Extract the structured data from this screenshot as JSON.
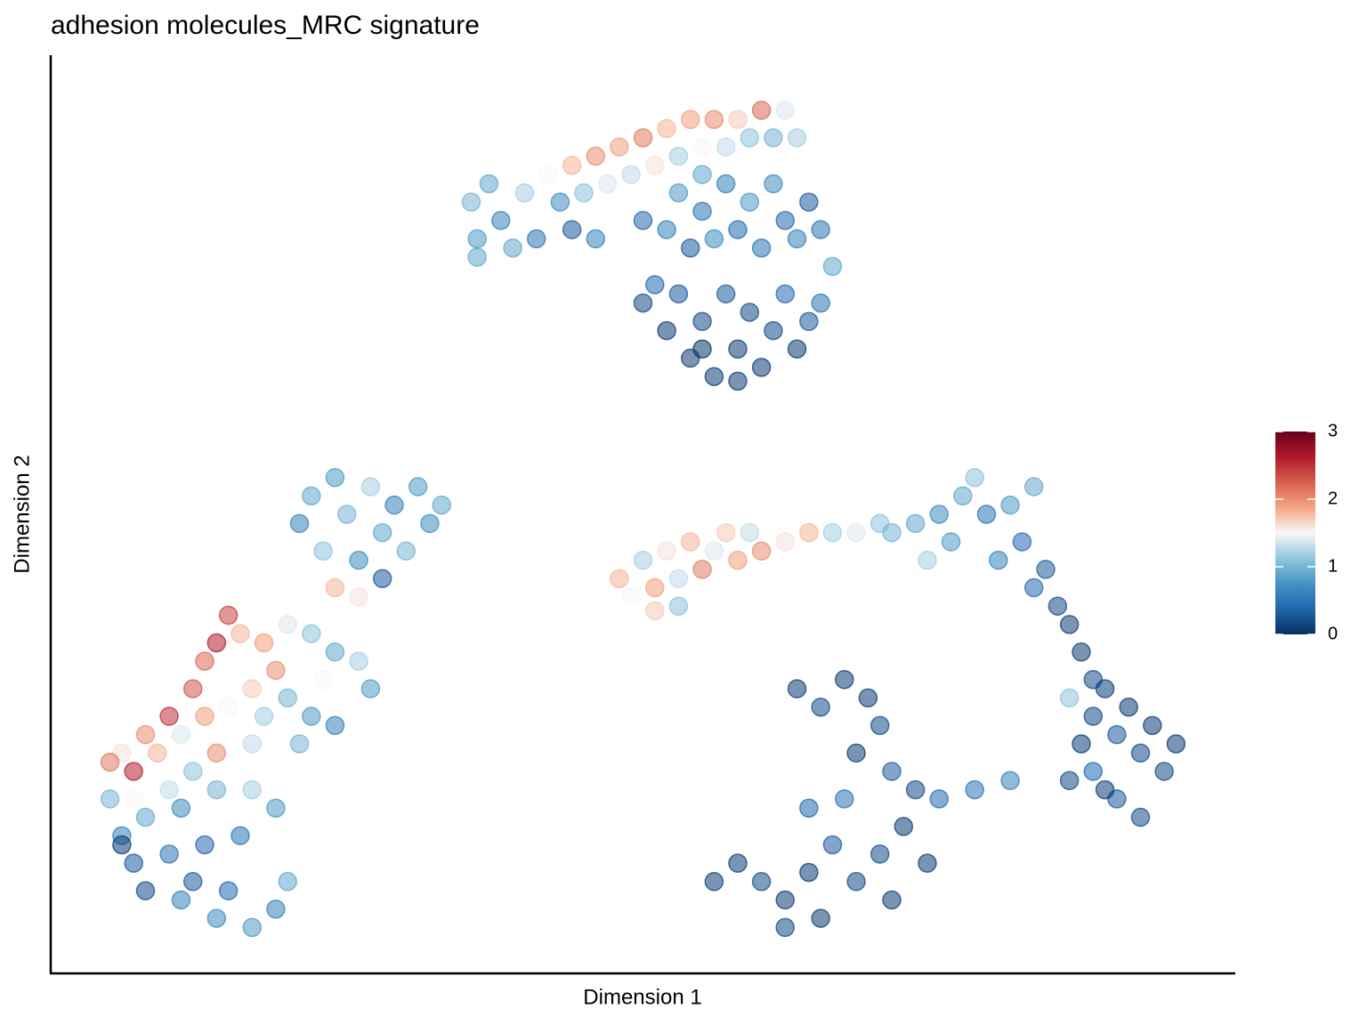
{
  "chart_data": {
    "type": "scatter",
    "title": "adhesion molecules_MRC signature",
    "xlabel": "Dimension 1",
    "ylabel": "Dimension 2",
    "xlim": [
      0,
      100
    ],
    "ylim": [
      0,
      100
    ],
    "x": [
      35.5,
      36,
      37,
      38,
      39,
      40,
      41,
      42,
      43,
      44,
      45,
      46,
      47,
      48,
      49,
      50,
      51,
      52,
      53,
      54,
      55,
      56,
      57,
      58,
      59,
      60,
      61,
      62,
      63,
      36,
      55,
      50,
      52,
      53,
      54,
      55,
      56,
      57,
      58,
      59,
      60,
      61,
      62,
      63,
      64,
      65,
      66,
      44,
      46,
      50,
      52,
      53,
      54,
      55,
      56,
      57,
      58,
      59,
      60,
      61,
      62,
      63,
      64,
      55,
      58,
      51,
      65,
      21,
      22,
      23,
      24,
      25,
      26,
      27,
      28,
      29,
      30,
      31,
      32,
      33,
      26,
      24,
      28,
      15,
      14,
      13,
      16,
      18,
      20,
      22,
      24,
      26,
      27,
      23,
      19,
      17,
      12,
      10,
      8,
      6,
      5,
      7,
      9,
      11,
      13,
      15,
      18,
      20,
      22,
      24,
      21,
      17,
      14,
      12,
      10,
      7,
      5,
      6,
      8,
      11,
      14,
      17,
      19,
      16,
      13,
      10,
      7,
      8,
      11,
      14,
      17,
      19,
      20,
      12,
      15,
      6,
      48,
      49,
      50,
      51,
      52,
      53,
      54,
      55,
      56,
      57,
      58,
      59,
      60,
      62,
      64,
      66,
      68,
      70,
      51,
      53,
      71,
      73,
      74,
      75,
      76,
      77,
      78,
      79,
      80,
      81,
      82,
      83,
      84,
      85,
      83,
      86,
      87,
      88,
      86,
      88,
      89,
      90,
      91,
      92,
      93,
      94,
      95,
      90,
      92,
      88,
      87,
      86,
      89,
      63,
      65,
      67,
      69,
      70,
      68,
      71,
      73,
      75,
      78,
      81,
      72,
      70,
      74,
      71,
      68,
      66,
      64,
      62,
      60,
      58,
      56,
      62,
      65,
      67,
      64
    ],
    "y": [
      84,
      80,
      86,
      82,
      79,
      85,
      80,
      87,
      84,
      88,
      85,
      89,
      86,
      90,
      87,
      91,
      88,
      92,
      89,
      93,
      90,
      93,
      90,
      93,
      91,
      94,
      91,
      94,
      91,
      78,
      87,
      82,
      81,
      85,
      79,
      83,
      80,
      86,
      81,
      84,
      79,
      86,
      82,
      80,
      84,
      81,
      77,
      81,
      80,
      73,
      70,
      74,
      67,
      71,
      65,
      74,
      68,
      72,
      66,
      70,
      74,
      68,
      71,
      68,
      64.5,
      75,
      73,
      49,
      52,
      46,
      54,
      50,
      45,
      53,
      48,
      51,
      46,
      53,
      49,
      51,
      41,
      42,
      43,
      39,
      36,
      34,
      37,
      36,
      38,
      37,
      35,
      34,
      31,
      32,
      33,
      31,
      31,
      28,
      26,
      24,
      23,
      22,
      24,
      26,
      28,
      29,
      28,
      30,
      28,
      27,
      25,
      25,
      24,
      22,
      20,
      19,
      19,
      15,
      17,
      18,
      20,
      20,
      18,
      15,
      14,
      13,
      12,
      9,
      8,
      6,
      5,
      7,
      10,
      10,
      9,
      14,
      43,
      41,
      45,
      42,
      46,
      43,
      47,
      44,
      46,
      48,
      45,
      48,
      46,
      47,
      48,
      48,
      48,
      49,
      39.5,
      40,
      48,
      49,
      45,
      50,
      47,
      52,
      54,
      50,
      45,
      51,
      47,
      53,
      44,
      40,
      42,
      38,
      35,
      32,
      30,
      28,
      31,
      26,
      29,
      24,
      27,
      22,
      25,
      19,
      17,
      22,
      25,
      21,
      20,
      31,
      29,
      32,
      30,
      27,
      24,
      22,
      20,
      19,
      20,
      21,
      16,
      13,
      12,
      8,
      10,
      14,
      11,
      8,
      10,
      12,
      10,
      5,
      6,
      19,
      18
    ],
    "values": [
      1.0,
      0.8,
      0.9,
      0.6,
      0.9,
      1.2,
      0.5,
      1.5,
      0.7,
      1.8,
      1.1,
      2.0,
      1.4,
      1.9,
      1.3,
      2.1,
      1.6,
      1.8,
      1.2,
      1.9,
      1.5,
      2.0,
      1.3,
      1.7,
      1.1,
      2.2,
      1.0,
      1.4,
      1.2,
      0.9,
      0.9,
      0.4,
      0.6,
      0.8,
      0.3,
      0.5,
      0.7,
      0.6,
      0.4,
      0.8,
      0.5,
      0.7,
      0.4,
      0.6,
      0.3,
      0.5,
      0.9,
      0.3,
      0.6,
      0.2,
      0.1,
      0.3,
      0.1,
      0.2,
      0.1,
      0.3,
      0.1,
      0.2,
      0.1,
      0.2,
      0.4,
      0.1,
      0.3,
      0.05,
      0.1,
      0.4,
      0.5,
      0.6,
      0.9,
      1.1,
      0.8,
      1.0,
      0.7,
      1.2,
      0.9,
      0.6,
      1.0,
      0.8,
      0.7,
      0.9,
      1.6,
      1.8,
      0.3,
      2.4,
      2.6,
      2.2,
      1.8,
      1.9,
      1.4,
      1.1,
      0.9,
      1.2,
      0.8,
      1.5,
      2.0,
      1.7,
      2.3,
      2.5,
      2.0,
      1.6,
      2.1,
      2.6,
      1.8,
      1.4,
      1.9,
      1.5,
      1.2,
      1.0,
      0.8,
      0.6,
      1.0,
      1.3,
      2.0,
      1.1,
      1.3,
      1.5,
      1.0,
      0.6,
      0.9,
      0.7,
      1.0,
      1.2,
      0.8,
      0.5,
      0.4,
      0.5,
      0.3,
      0.2,
      0.6,
      0.7,
      0.8,
      0.6,
      0.9,
      0.3,
      0.4,
      0.1,
      1.8,
      1.5,
      1.2,
      1.9,
      1.6,
      1.3,
      1.8,
      2.1,
      1.4,
      1.7,
      1.9,
      1.3,
      2.0,
      1.6,
      1.8,
      1.2,
      1.4,
      1.1,
      1.7,
      1.1,
      1.0,
      0.9,
      1.2,
      0.7,
      0.8,
      0.9,
      1.1,
      0.5,
      0.6,
      0.8,
      0.4,
      0.9,
      0.3,
      0.2,
      0.4,
      0.1,
      0.1,
      0.2,
      1.1,
      0.2,
      0.1,
      0.3,
      0.1,
      0.2,
      0.1,
      0.2,
      0.1,
      0.3,
      0.2,
      0.4,
      0.1,
      0.2,
      0.1,
      0.1,
      0.2,
      0.1,
      0.1,
      0.2,
      0.1,
      0.3,
      0.2,
      0.4,
      0.5,
      0.6,
      0.1,
      0.2,
      0.1,
      0.1,
      0.2,
      0.3,
      0.1,
      0.1,
      0.2,
      0.1,
      0.1,
      0.2,
      0.1,
      0.5,
      0.4
    ],
    "colorbar": {
      "lim": [
        0,
        3
      ],
      "ticks": [
        0,
        1,
        2,
        3
      ],
      "colors": [
        "#053061",
        "#2166ac",
        "#4393c3",
        "#92c5de",
        "#f7f7f7",
        "#f4a582",
        "#d6604d",
        "#b2182b",
        "#67001f"
      ]
    }
  }
}
